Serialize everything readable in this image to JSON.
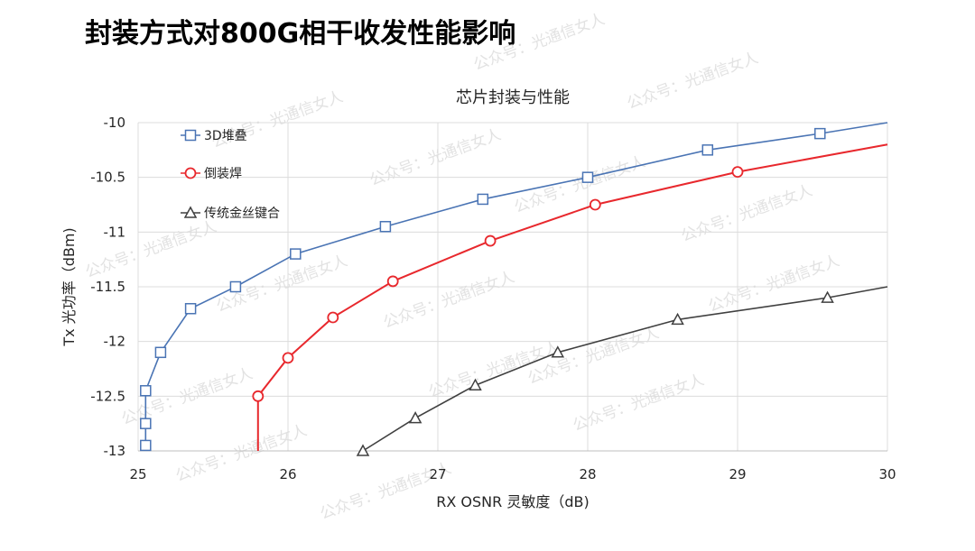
{
  "page_title": "封装方式对800G相干收发性能影响",
  "watermark_text": "公众号：光通信女人",
  "chart_data": {
    "type": "line",
    "title": "芯片封装与性能",
    "xlabel": "RX OSNR 灵敏度（dB)",
    "ylabel": "Tx 光功率（dBm)",
    "xlim": [
      25,
      30
    ],
    "ylim": [
      -13,
      -10
    ],
    "x_ticks": [
      25,
      26,
      27,
      28,
      29,
      30
    ],
    "y_ticks": [
      -10,
      -10.5,
      -11,
      -11.5,
      -12,
      -12.5,
      -13
    ],
    "x_tick_labels": [
      "25",
      "26",
      "27",
      "28",
      "29",
      "30"
    ],
    "y_tick_labels": [
      "-10",
      "-10.5",
      "-11",
      "-11.5",
      "-12",
      "-12.5",
      "-13"
    ],
    "grid": true,
    "legend_position": "top-left",
    "series": [
      {
        "name": "3D堆叠",
        "color": "#4a74b4",
        "marker": "square",
        "x": [
          25.05,
          25.05,
          25.05,
          25.15,
          25.35,
          25.65,
          26.05,
          26.65,
          27.3,
          28.0,
          28.8,
          29.55
        ],
        "y": [
          -12.95,
          -12.75,
          -12.45,
          -12.1,
          -11.7,
          -11.5,
          -11.2,
          -10.95,
          -10.7,
          -10.5,
          -10.25,
          -10.1
        ],
        "line_end": [
          30,
          -10
        ]
      },
      {
        "name": "倒装焊",
        "color": "#e8282d",
        "marker": "circle",
        "x": [
          25.8,
          26.0,
          26.3,
          26.7,
          27.35,
          28.05,
          29.0
        ],
        "y": [
          -12.5,
          -12.15,
          -11.78,
          -11.45,
          -11.08,
          -10.75,
          -10.45
        ],
        "line_start": [
          25.8,
          -13
        ],
        "line_end": [
          30,
          -10.2
        ]
      },
      {
        "name": "传统金丝键合",
        "color": "#404040",
        "marker": "triangle",
        "x": [
          26.5,
          26.85,
          27.25,
          27.8,
          28.6,
          29.6
        ],
        "y": [
          -13.0,
          -12.7,
          -12.4,
          -12.1,
          -11.8,
          -11.6
        ],
        "line_end": [
          30,
          -11.5
        ]
      }
    ]
  }
}
